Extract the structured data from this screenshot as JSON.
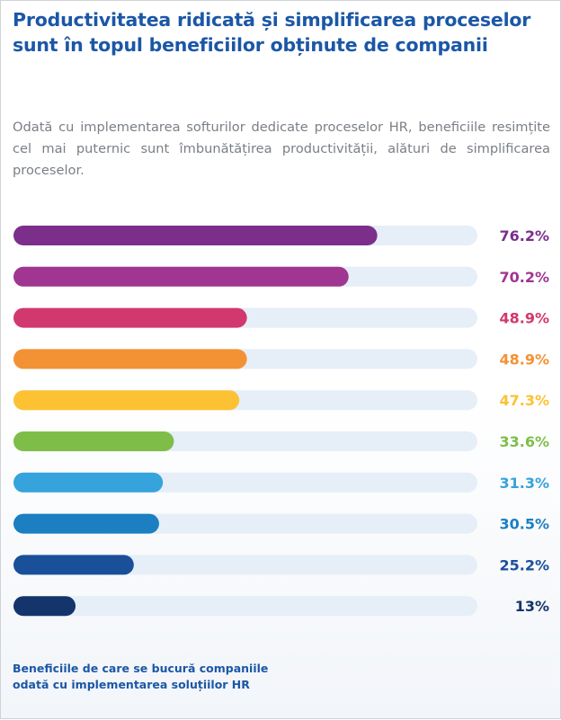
{
  "title": "Productivitatea ridicată și simplificarea proceselor sunt în topul beneficiilor obținute de companii",
  "subtitle": "Odată cu implementarea softurilor dedicate proceselor HR, beneficiile resimțite cel mai puternic sunt îmbunătățirea productivității, alături de simplificarea proceselor.",
  "footnote": "Beneficiile de care se bucură companiile odată cu implementarea soluțiilor HR",
  "colors": {
    "title": "#1b57a6",
    "track": "#e6eef7"
  },
  "chart_data": {
    "type": "bar",
    "orientation": "horizontal",
    "xlim": [
      0,
      100
    ],
    "grid": false,
    "values": [
      76.2,
      70.2,
      48.9,
      48.9,
      47.3,
      33.6,
      31.3,
      30.5,
      25.2,
      13
    ],
    "labels": [
      "76.2%",
      "70.2%",
      "48.9%",
      "48.9%",
      "47.3%",
      "33.6%",
      "31.3%",
      "30.5%",
      "25.2%",
      "13%"
    ],
    "colors": [
      "#7b2f8b",
      "#a03592",
      "#d1386e",
      "#f29234",
      "#fcc234",
      "#7fbd49",
      "#36a3dc",
      "#1b7fc1",
      "#1a4f9a",
      "#14356b"
    ]
  }
}
